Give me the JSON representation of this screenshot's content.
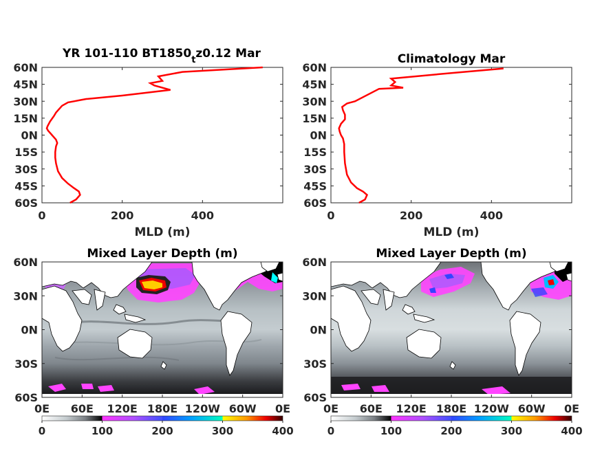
{
  "chart_data": [
    {
      "type": "line",
      "title_main": "YR 101-110 BT1850",
      "title_sub": "t",
      "title_tail": "z0.12 Mar",
      "xlabel": "MLD (m)",
      "ylabel": "",
      "xlim": [
        0,
        600
      ],
      "ylim": [
        -60,
        60
      ],
      "xticks": [
        "0",
        "200",
        "400"
      ],
      "yticks": [
        "60N",
        "45N",
        "30N",
        "15N",
        "0N",
        "15S",
        "30S",
        "45S",
        "60S"
      ],
      "series": [
        {
          "color": "#ff0000",
          "x": [
            70,
            85,
            95,
            92,
            80,
            65,
            50,
            40,
            35,
            33,
            33,
            35,
            38,
            35,
            30,
            25,
            20,
            15,
            12,
            14,
            20,
            30,
            35,
            40,
            50,
            65,
            80,
            95,
            110,
            200,
            320,
            280,
            270,
            300,
            290,
            350,
            550
          ],
          "y": [
            -60,
            -57,
            -53,
            -50,
            -47,
            -43,
            -38,
            -32,
            -25,
            -20,
            -15,
            -10,
            -7,
            -4,
            -2,
            0,
            2,
            4,
            6,
            8,
            12,
            17,
            20,
            22,
            26,
            29,
            30,
            31,
            32,
            35,
            40,
            44,
            46,
            48,
            52,
            56,
            60
          ]
        }
      ]
    },
    {
      "type": "line",
      "title": "Climatology Mar",
      "xlabel": "MLD (m)",
      "ylabel": "",
      "xlim": [
        0,
        600
      ],
      "ylim": [
        -60,
        60
      ],
      "xticks": [
        "0",
        "200",
        "400"
      ],
      "yticks": [
        "60N",
        "45N",
        "30N",
        "15N",
        "0N",
        "15S",
        "30S",
        "45S",
        "60S"
      ],
      "series": [
        {
          "color": "#ff0000",
          "x": [
            70,
            85,
            90,
            80,
            65,
            50,
            40,
            35,
            33,
            33,
            30,
            25,
            22,
            20,
            25,
            35,
            35,
            30,
            28,
            40,
            60,
            120,
            180,
            150,
            160,
            150,
            300,
            430
          ],
          "y": [
            -60,
            -57,
            -53,
            -50,
            -47,
            -42,
            -35,
            -25,
            -15,
            -8,
            -3,
            0,
            3,
            6,
            10,
            14,
            18,
            22,
            25,
            28,
            30,
            41,
            42,
            44,
            47,
            50,
            55,
            59
          ]
        }
      ]
    },
    {
      "type": "heatmap",
      "title": "Mixed Layer Depth (m)",
      "xticks": [
        "0E",
        "60E",
        "120E",
        "180E",
        "120W",
        "60W",
        "0E"
      ],
      "yticks": [
        "60N",
        "30N",
        "0N",
        "30S",
        "60S"
      ],
      "colorbar_ticks": [
        "0",
        "100",
        "200",
        "300",
        "400"
      ],
      "colorbar_range": [
        0,
        400
      ],
      "colormap": [
        "#ffffff",
        "#aab4b8",
        "#555558",
        "#000000",
        "#ff33ff",
        "#aa55ff",
        "#3344ff",
        "#00ffff",
        "#ffff00",
        "#ff8800",
        "#ee0000",
        "#330000"
      ],
      "features": [
        "Strong deep mixing (300-400 m) in Kuroshio extension near 35N 150E-180",
        "Magenta 100-200 m across subpolar North Pacific",
        "Deep mixing (>400 m) in Labrador/Nordic seas",
        "Magenta patches 100-150 m in Southern Ocean near 55S"
      ]
    },
    {
      "type": "heatmap",
      "title": "Mixed Layer Depth (m)",
      "xticks": [
        "0E",
        "60E",
        "120E",
        "180E",
        "120W",
        "60W",
        "0E"
      ],
      "yticks": [
        "60N",
        "30N",
        "0N",
        "30S",
        "60S"
      ],
      "colorbar_ticks": [
        "0",
        "100",
        "200",
        "300",
        "400"
      ],
      "colorbar_range": [
        0,
        400
      ],
      "colormap": [
        "#ffffff",
        "#aab4b8",
        "#555558",
        "#000000",
        "#ff33ff",
        "#aa55ff",
        "#3344ff",
        "#00ffff",
        "#ffff00",
        "#ff8800",
        "#ee0000",
        "#330000"
      ],
      "features": [
        "Magenta 100-150 m in North Pacific mode water region",
        "Deep mixing in North Atlantic subpolar gyre with red/yellow cores",
        "Dark grey 60-90 m belt along Southern Ocean"
      ]
    }
  ]
}
